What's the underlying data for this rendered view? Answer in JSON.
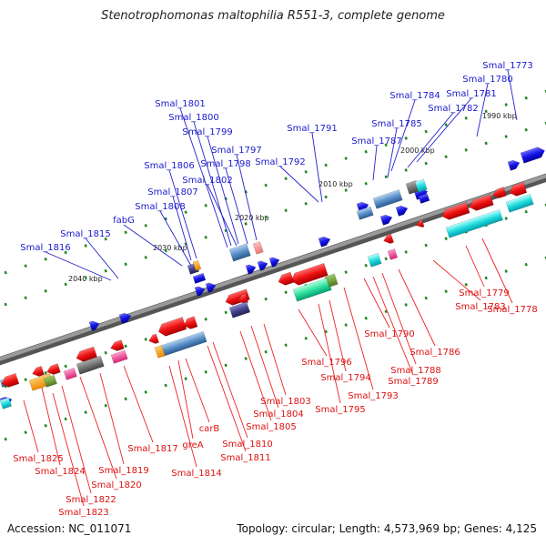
{
  "title": "Stenotrophomonas maltophilia R551-3, complete genome",
  "footer": {
    "accession": "Accession: NC_011071",
    "topology": "Topology: circular; Length: 4,573,969 bp; Genes: 4,125"
  },
  "ticks": [
    "1990 kbp",
    "2000 kbp",
    "2010 kbp",
    "2020 kbp",
    "2030 kbp",
    "2040 kbp"
  ],
  "labels_top": [
    "Smal_1773",
    "Smal_1780",
    "Smal_1781",
    "Smal_1782",
    "Smal_1784",
    "Smal_1785",
    "Smal_1787",
    "Smal_1791",
    "Smal_1792",
    "Smal_1797",
    "Smal_1798",
    "Smal_1799",
    "Smal_1800",
    "Smal_1801",
    "Smal_1802",
    "Smal_1806",
    "Smal_1807",
    "Smal_1808",
    "fabG",
    "Smal_1815",
    "Smal_1816"
  ],
  "labels_bottom": [
    "Smal_1779",
    "Smal_1778",
    "Smal_1783",
    "Smal_1786",
    "Smal_1788",
    "Smal_1789",
    "Smal_1790",
    "Smal_1793",
    "Smal_1794",
    "Smal_1795",
    "Smal_1796",
    "Smal_1803",
    "Smal_1804",
    "Smal_1805",
    "Smal_1810",
    "Smal_1811",
    "carB",
    "greA",
    "Smal_1814",
    "Smal_1817",
    "Smal_1819",
    "Smal_1820",
    "Smal_1822",
    "Smal_1823",
    "Smal_1824",
    "Smal_1825"
  ],
  "colors": {
    "backbone": "#808080",
    "forward_gene": "#1010e8",
    "reverse_gene": "#e81010",
    "top_label": "#1a1acc",
    "bottom_label": "#dd1111",
    "dot": "#228822"
  }
}
